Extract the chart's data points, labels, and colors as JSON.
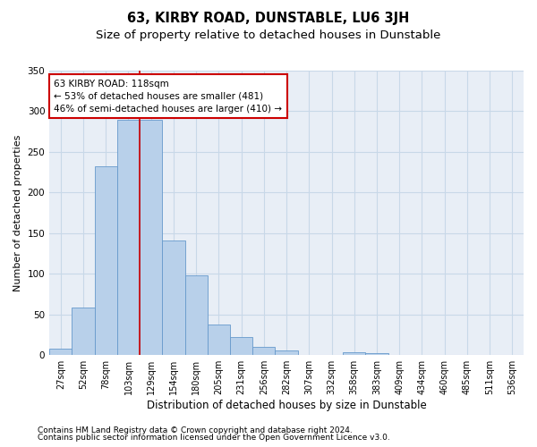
{
  "title": "63, KIRBY ROAD, DUNSTABLE, LU6 3JH",
  "subtitle": "Size of property relative to detached houses in Dunstable",
  "xlabel": "Distribution of detached houses by size in Dunstable",
  "ylabel": "Number of detached properties",
  "bar_values": [
    8,
    58,
    232,
    290,
    290,
    141,
    98,
    38,
    22,
    10,
    6,
    0,
    0,
    4,
    2,
    0,
    0,
    0,
    0,
    0,
    0
  ],
  "bar_labels": [
    "27sqm",
    "52sqm",
    "78sqm",
    "103sqm",
    "129sqm",
    "154sqm",
    "180sqm",
    "205sqm",
    "231sqm",
    "256sqm",
    "282sqm",
    "307sqm",
    "332sqm",
    "358sqm",
    "383sqm",
    "409sqm",
    "434sqm",
    "460sqm",
    "485sqm",
    "511sqm",
    "536sqm"
  ],
  "bar_color": "#b8d0ea",
  "bar_edge_color": "#6699cc",
  "grid_color": "#c8d8e8",
  "bg_color": "#e8eef6",
  "vline_x": 3.5,
  "vline_color": "#cc0000",
  "annotation_line1": "63 KIRBY ROAD: 118sqm",
  "annotation_line2": "← 53% of detached houses are smaller (481)",
  "annotation_line3": "46% of semi-detached houses are larger (410) →",
  "annotation_box_color": "#ffffff",
  "annotation_box_edge": "#cc0000",
  "footer1": "Contains HM Land Registry data © Crown copyright and database right 2024.",
  "footer2": "Contains public sector information licensed under the Open Government Licence v3.0.",
  "ylim": [
    0,
    350
  ],
  "yticks": [
    0,
    50,
    100,
    150,
    200,
    250,
    300,
    350
  ],
  "title_fontsize": 10.5,
  "subtitle_fontsize": 9.5,
  "tick_fontsize": 7,
  "xlabel_fontsize": 8.5,
  "ylabel_fontsize": 8,
  "annotation_fontsize": 7.5,
  "footer_fontsize": 6.5
}
